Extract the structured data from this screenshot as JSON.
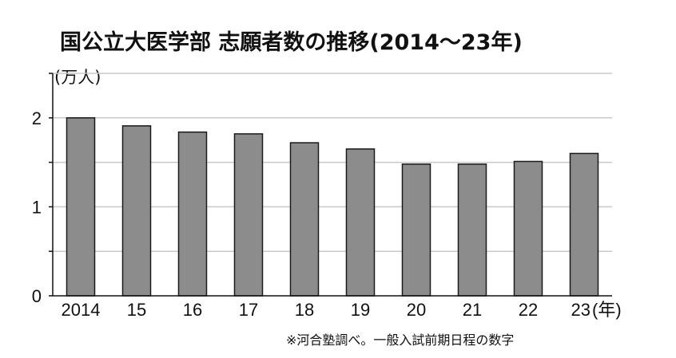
{
  "chart_data": {
    "type": "bar",
    "title": "国公立大医学部 志願者数の推移(2014〜23年)",
    "ylabel": "(万人)",
    "xlabel_suffix": "(年)",
    "categories": [
      "2014",
      "15",
      "16",
      "17",
      "18",
      "19",
      "20",
      "21",
      "22",
      "23"
    ],
    "values": [
      2.0,
      1.91,
      1.84,
      1.82,
      1.72,
      1.65,
      1.48,
      1.48,
      1.51,
      1.6
    ],
    "yticks": [
      "0",
      "1",
      "2"
    ],
    "ylim": [
      0,
      2.5
    ],
    "grid": true,
    "note": "※河合塾調べ。一般入試前期日程の数字",
    "colors": {
      "bar": "#8c8c8c",
      "bar_edge": "#1a1a1a",
      "grid": "#c8c8c8",
      "axis": "#111111"
    }
  }
}
